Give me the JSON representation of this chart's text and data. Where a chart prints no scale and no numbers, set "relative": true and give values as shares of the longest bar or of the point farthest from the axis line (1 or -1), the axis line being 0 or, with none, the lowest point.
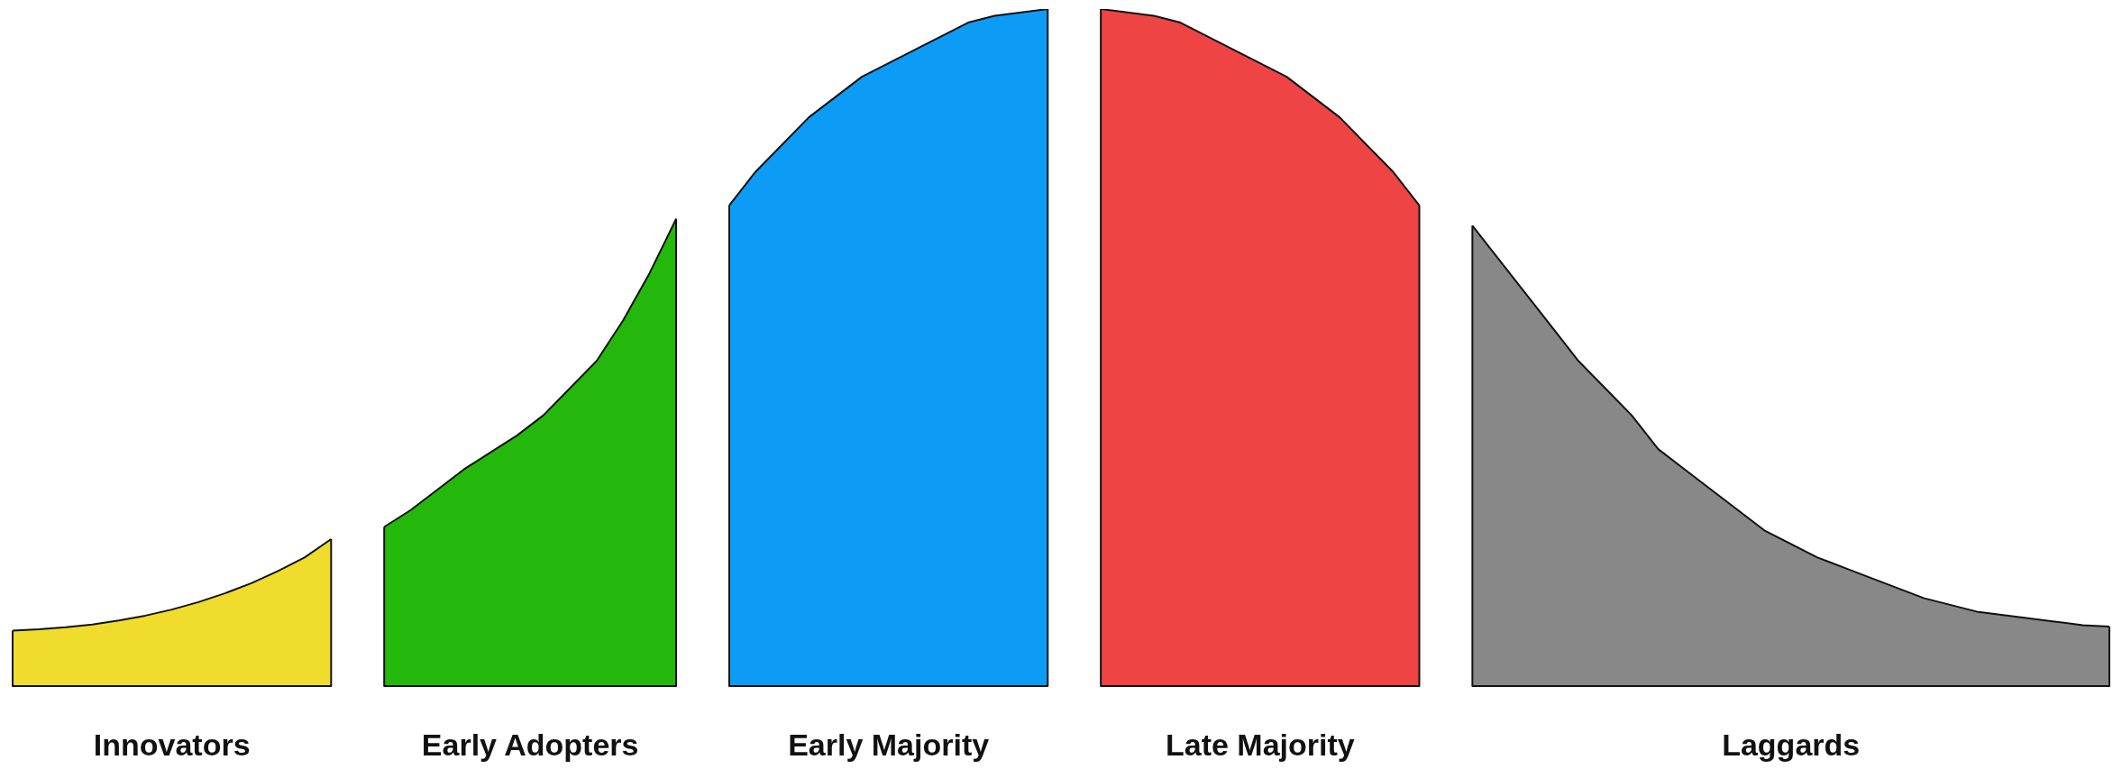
{
  "chart_data": {
    "type": "area",
    "relative": true,
    "categories": [
      null,
      null,
      null,
      null,
      null,
      null,
      null,
      null,
      null,
      null,
      null,
      null,
      null,
      null,
      null,
      null,
      null,
      null,
      null,
      null,
      null,
      null,
      null,
      null,
      null,
      null,
      null,
      null,
      null,
      null,
      null,
      null,
      null,
      null,
      null,
      null,
      null,
      null,
      null,
      null,
      null,
      null,
      null,
      null,
      null,
      null,
      null,
      null,
      null,
      null,
      null,
      null,
      null,
      null,
      null,
      null,
      null,
      null,
      null,
      null,
      null,
      null,
      null,
      null,
      null,
      null,
      null,
      null,
      null,
      null,
      null,
      null,
      null,
      null,
      null,
      null,
      null,
      null,
      null,
      null
    ],
    "series": [
      {
        "name": "Innovators",
        "color": "#f0dc2c",
        "values": [
          0.082,
          0.084,
          0.087,
          0.091,
          0.097,
          0.104,
          0.113,
          0.124,
          0.137,
          0.152,
          0.17,
          0.19,
          0.217,
          null,
          null,
          null,
          null,
          null,
          null,
          null,
          null,
          null,
          null,
          null,
          null,
          null,
          null,
          null,
          null,
          null,
          null,
          null,
          null,
          null,
          null,
          null,
          null,
          null,
          null,
          null,
          null,
          null,
          null,
          null,
          null,
          null,
          null,
          null,
          null,
          null,
          null,
          null,
          null,
          null,
          null,
          null,
          null,
          null,
          null,
          null,
          null,
          null,
          null,
          null,
          null,
          null,
          null,
          null,
          null,
          null,
          null,
          null,
          null,
          null,
          null,
          null,
          null,
          null,
          null,
          null
        ]
      },
      {
        "name": "Early Adopters",
        "color": "#24b80c",
        "values": [
          null,
          null,
          null,
          null,
          null,
          null,
          null,
          null,
          null,
          null,
          null,
          null,
          null,
          null,
          0.235,
          0.26,
          0.29,
          0.32,
          0.345,
          0.37,
          0.4,
          0.44,
          0.48,
          0.54,
          0.61,
          0.69,
          null,
          null,
          null,
          null,
          null,
          null,
          null,
          null,
          null,
          null,
          null,
          null,
          null,
          null,
          null,
          null,
          null,
          null,
          null,
          null,
          null,
          null,
          null,
          null,
          null,
          null,
          null,
          null,
          null,
          null,
          null,
          null,
          null,
          null,
          null,
          null,
          null,
          null,
          null,
          null,
          null,
          null,
          null,
          null,
          null,
          null,
          null,
          null,
          null,
          null,
          null,
          null,
          null,
          null
        ]
      },
      {
        "name": "Early Majority",
        "color": "#0d9cf5",
        "values": [
          null,
          null,
          null,
          null,
          null,
          null,
          null,
          null,
          null,
          null,
          null,
          null,
          null,
          null,
          null,
          null,
          null,
          null,
          null,
          null,
          null,
          null,
          null,
          null,
          null,
          null,
          null,
          0.71,
          0.76,
          0.8,
          0.84,
          0.87,
          0.9,
          0.92,
          0.94,
          0.96,
          0.98,
          0.99,
          0.995,
          1.0,
          null,
          null,
          null,
          null,
          null,
          null,
          null,
          null,
          null,
          null,
          null,
          null,
          null,
          null,
          null,
          null,
          null,
          null,
          null,
          null,
          null,
          null,
          null,
          null,
          null,
          null,
          null,
          null,
          null,
          null,
          null,
          null,
          null,
          null,
          null,
          null,
          null,
          null,
          null,
          null
        ]
      },
      {
        "name": "Late Majority",
        "color": "#ef4444",
        "values": [
          null,
          null,
          null,
          null,
          null,
          null,
          null,
          null,
          null,
          null,
          null,
          null,
          null,
          null,
          null,
          null,
          null,
          null,
          null,
          null,
          null,
          null,
          null,
          null,
          null,
          null,
          null,
          null,
          null,
          null,
          null,
          null,
          null,
          null,
          null,
          null,
          null,
          null,
          null,
          null,
          null,
          1.0,
          0.995,
          0.99,
          0.98,
          0.96,
          0.94,
          0.92,
          0.9,
          0.87,
          0.84,
          0.8,
          0.76,
          0.71,
          null,
          null,
          null,
          null,
          null,
          null,
          null,
          null,
          null,
          null,
          null,
          null,
          null,
          null,
          null,
          null,
          null,
          null,
          null,
          null,
          null,
          null,
          null,
          null,
          null,
          null
        ]
      },
      {
        "name": "Laggards",
        "color": "#888888",
        "values": [
          null,
          null,
          null,
          null,
          null,
          null,
          null,
          null,
          null,
          null,
          null,
          null,
          null,
          null,
          null,
          null,
          null,
          null,
          null,
          null,
          null,
          null,
          null,
          null,
          null,
          null,
          null,
          null,
          null,
          null,
          null,
          null,
          null,
          null,
          null,
          null,
          null,
          null,
          null,
          null,
          null,
          null,
          null,
          null,
          null,
          null,
          null,
          null,
          null,
          null,
          null,
          null,
          null,
          null,
          null,
          0.68,
          0.63,
          0.58,
          0.53,
          0.48,
          0.44,
          0.4,
          0.35,
          0.32,
          0.29,
          0.26,
          0.23,
          0.21,
          0.19,
          0.175,
          0.16,
          0.145,
          0.13,
          0.12,
          0.11,
          0.105,
          0.1,
          0.095,
          0.09,
          0.088
        ]
      }
    ]
  }
}
